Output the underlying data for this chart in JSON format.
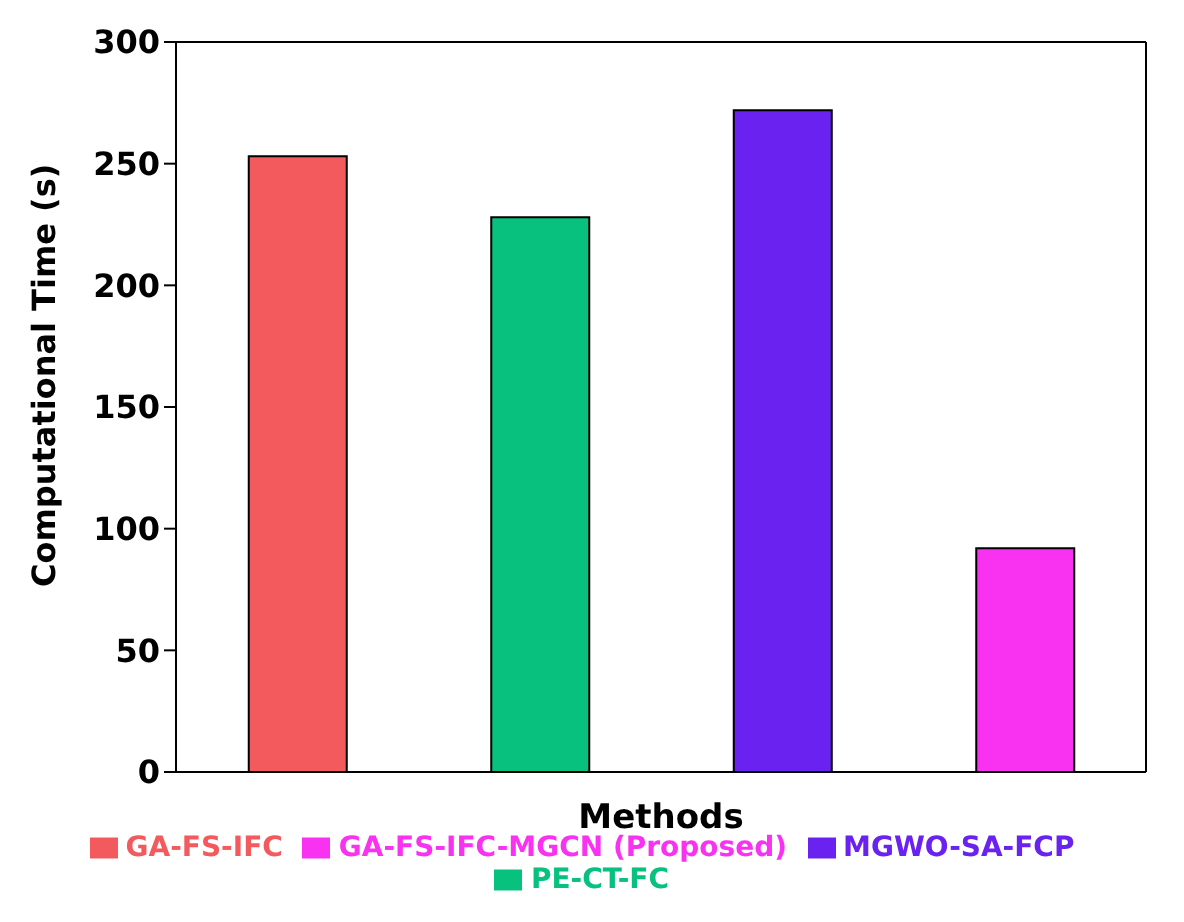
{
  "chart_data": {
    "type": "bar",
    "xlabel": "Methods",
    "ylabel": "Computational Time (s)",
    "categories": [
      null,
      null,
      null,
      null
    ],
    "series": [
      {
        "name": "GA-FS-IFC",
        "color": "#f25a5e",
        "values": [
          253,
          null,
          null,
          null
        ]
      },
      {
        "name": "PE-CT-FC",
        "color": "#08c17f",
        "values": [
          null,
          228,
          null,
          null
        ]
      },
      {
        "name": "MGWO-SA-FCP",
        "color": "#6a22f0",
        "values": [
          null,
          null,
          272,
          null
        ]
      },
      {
        "name": "GA-FS-IFC-MGCN (Proposed)",
        "color": "#f931f0",
        "values": [
          null,
          null,
          null,
          92
        ]
      }
    ],
    "ylim": [
      0,
      300
    ],
    "yticks": [
      0,
      50,
      100,
      150,
      200,
      250,
      300
    ],
    "grid": false,
    "legend": "bottom"
  }
}
